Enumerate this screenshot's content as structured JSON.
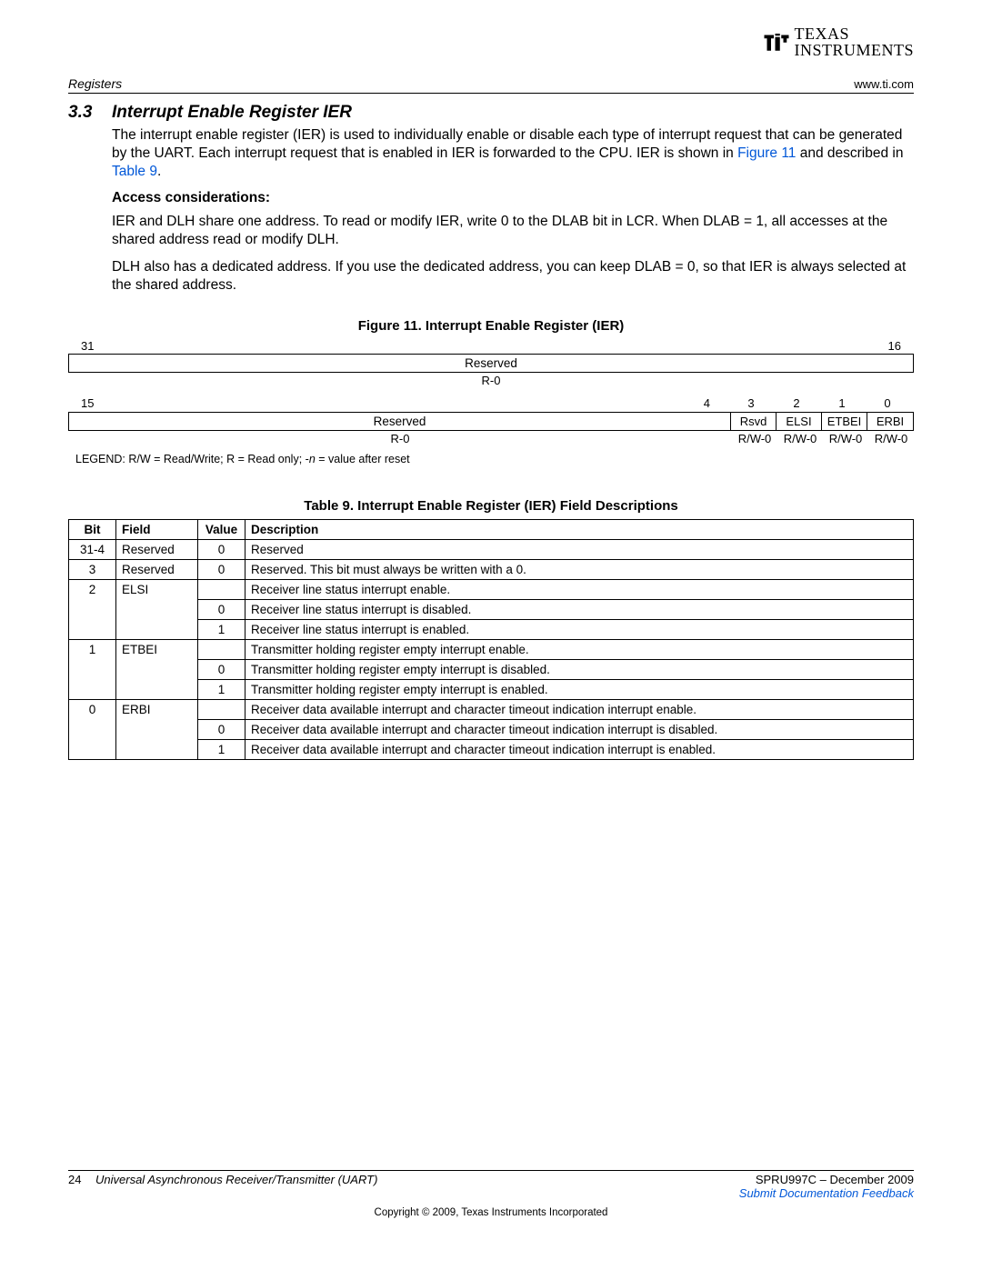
{
  "logo": {
    "top": "TEXAS",
    "bottom": "INSTRUMENTS"
  },
  "header": {
    "left": "Registers",
    "right": "www.ti.com"
  },
  "section": {
    "num": "3.3",
    "title": "Interrupt Enable Register IER",
    "para1_a": "The interrupt enable register (IER) is used to individually enable or disable each type of interrupt request that can be generated by the UART. Each interrupt request that is enabled in IER is forwarded to the CPU. IER is shown in ",
    "link1": "Figure 11",
    "para1_b": " and described in ",
    "link2": "Table 9",
    "para1_c": ".",
    "access_h": "Access considerations:",
    "para2": "IER and DLH share one address. To read or modify IER, write 0 to the DLAB bit in LCR. When DLAB = 1, all accesses at the shared address read or modify DLH.",
    "para3": "DLH also has a dedicated address. If you use the dedicated address, you can keep DLAB = 0, so that IER is always selected at the shared address."
  },
  "figure": {
    "caption": "Figure 11. Interrupt Enable Register (IER)",
    "row1": {
      "hi": "31",
      "lo": "16",
      "label": "Reserved",
      "rw": "R-0"
    },
    "row2": {
      "hi": "15",
      "b4": "4",
      "bits": [
        "3",
        "2",
        "1",
        "0"
      ],
      "reserved": "Reserved",
      "fields": [
        "Rsvd",
        "ELSI",
        "ETBEI",
        "ERBI"
      ],
      "rw_reserved": "R-0",
      "rw_fields": [
        "R/W-0",
        "R/W-0",
        "R/W-0",
        "R/W-0"
      ]
    },
    "legend_a": "LEGEND: R/W = Read/Write; R = Read only; -",
    "legend_i": "n",
    "legend_b": " = value after reset"
  },
  "table": {
    "caption": "Table 9. Interrupt Enable Register (IER) Field Descriptions",
    "headers": [
      "Bit",
      "Field",
      "Value",
      "Description"
    ],
    "rows": [
      {
        "bit": "31-4",
        "field": "Reserved",
        "value": "0",
        "desc": "Reserved",
        "bitClass": "",
        "fieldClass": "",
        "valClass": "",
        "descClass": ""
      },
      {
        "bit": "3",
        "field": "Reserved",
        "value": "0",
        "desc": "Reserved. This bit must always be written with a 0.",
        "bitClass": "",
        "fieldClass": "",
        "valClass": "",
        "descClass": ""
      },
      {
        "bit": "2",
        "field": "ELSI",
        "value": "",
        "desc": "Receiver line status interrupt enable.",
        "bitClass": "nb-bot",
        "fieldClass": "nb-bot",
        "valClass": "",
        "descClass": ""
      },
      {
        "bit": "",
        "field": "",
        "value": "0",
        "desc": "Receiver line status interrupt is disabled.",
        "bitClass": "nb-top nb-bot",
        "fieldClass": "nb-top nb-bot",
        "valClass": "",
        "descClass": ""
      },
      {
        "bit": "",
        "field": "",
        "value": "1",
        "desc": "Receiver line status interrupt is enabled.",
        "bitClass": "nb-top",
        "fieldClass": "nb-top",
        "valClass": "",
        "descClass": ""
      },
      {
        "bit": "1",
        "field": "ETBEI",
        "value": "",
        "desc": "Transmitter holding register empty interrupt enable.",
        "bitClass": "nb-bot",
        "fieldClass": "nb-bot",
        "valClass": "",
        "descClass": ""
      },
      {
        "bit": "",
        "field": "",
        "value": "0",
        "desc": "Transmitter holding register empty interrupt is disabled.",
        "bitClass": "nb-top nb-bot",
        "fieldClass": "nb-top nb-bot",
        "valClass": "",
        "descClass": ""
      },
      {
        "bit": "",
        "field": "",
        "value": "1",
        "desc": "Transmitter holding register empty interrupt is enabled.",
        "bitClass": "nb-top",
        "fieldClass": "nb-top",
        "valClass": "",
        "descClass": ""
      },
      {
        "bit": "0",
        "field": "ERBI",
        "value": "",
        "desc": "Receiver data available interrupt and character timeout indication interrupt enable.",
        "bitClass": "nb-bot",
        "fieldClass": "nb-bot",
        "valClass": "",
        "descClass": ""
      },
      {
        "bit": "",
        "field": "",
        "value": "0",
        "desc": "Receiver data available interrupt and character timeout indication interrupt is disabled.",
        "bitClass": "nb-top nb-bot",
        "fieldClass": "nb-top nb-bot",
        "valClass": "",
        "descClass": ""
      },
      {
        "bit": "",
        "field": "",
        "value": "1",
        "desc": "Receiver data available interrupt and character timeout indication interrupt is enabled.",
        "bitClass": "nb-top",
        "fieldClass": "nb-top",
        "valClass": "",
        "descClass": ""
      }
    ]
  },
  "footer": {
    "pagenum": "24",
    "title": "Universal Asynchronous Receiver/Transmitter (UART)",
    "doc": "SPRU997C – December 2009",
    "feedback": "Submit Documentation Feedback",
    "copyright": "Copyright © 2009, Texas Instruments Incorporated"
  }
}
